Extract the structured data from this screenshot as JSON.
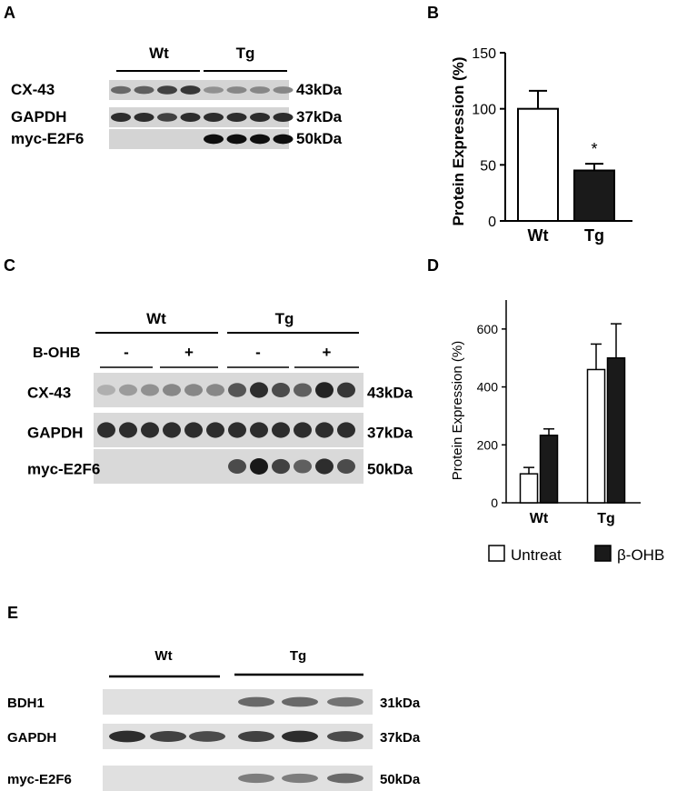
{
  "panel_labels": {
    "a": "A",
    "b": "B",
    "c": "C",
    "d": "D",
    "e": "E"
  },
  "panel_a": {
    "groups": [
      "Wt",
      "Tg"
    ],
    "lanes_per_group": 4,
    "rows": [
      {
        "label": "CX-43",
        "kda": "43kDa",
        "wt": [
          0.55,
          0.6,
          0.75,
          0.8
        ],
        "tg": [
          0.35,
          0.4,
          0.4,
          0.4
        ]
      },
      {
        "label": "GAPDH",
        "kda": "37kDa",
        "wt": [
          0.85,
          0.85,
          0.75,
          0.85
        ],
        "tg": [
          0.85,
          0.85,
          0.85,
          0.85
        ]
      },
      {
        "label": "myc-E2F6",
        "kda": "50kDa",
        "wt": [
          0,
          0,
          0,
          0
        ],
        "tg": [
          1,
          1,
          1,
          1
        ]
      }
    ]
  },
  "panel_c": {
    "groups": [
      "Wt",
      "Tg"
    ],
    "treatment_label": "B-OHB",
    "treatment_signs": [
      "-",
      "+",
      "-",
      "+"
    ],
    "lanes_per_subgroup": 3,
    "rows": [
      {
        "label": "CX-43",
        "kda": "43kDa",
        "bands": [
          0.2,
          0.3,
          0.35,
          0.4,
          0.4,
          0.4,
          0.65,
          0.85,
          0.7,
          0.6,
          0.9,
          0.8
        ]
      },
      {
        "label": "GAPDH",
        "kda": "37kDa",
        "bands": [
          0.85,
          0.85,
          0.85,
          0.85,
          0.85,
          0.85,
          0.85,
          0.85,
          0.85,
          0.85,
          0.85,
          0.85
        ]
      },
      {
        "label": "myc-E2F6",
        "kda": "50kDa",
        "bands": [
          0,
          0,
          0,
          0,
          0,
          0,
          0.7,
          0.95,
          0.75,
          0.6,
          0.85,
          0.7
        ]
      }
    ]
  },
  "panel_e": {
    "groups": [
      "Wt",
      "Tg"
    ],
    "lanes_per_group": 3,
    "rows": [
      {
        "label": "BDH1",
        "kda": "31kDa",
        "wt": [
          0,
          0,
          0
        ],
        "tg": [
          0.55,
          0.55,
          0.5
        ]
      },
      {
        "label": "GAPDH",
        "kda": "37kDa",
        "wt": [
          0.85,
          0.75,
          0.7
        ],
        "tg": [
          0.75,
          0.85,
          0.7
        ]
      },
      {
        "label": "myc-E2F6",
        "kda": "50kDa",
        "wt": [
          0,
          0,
          0
        ],
        "tg": [
          0.45,
          0.45,
          0.55
        ]
      }
    ]
  },
  "chart_data": [
    {
      "panel": "B",
      "type": "bar",
      "categories": [
        "Wt",
        "Tg"
      ],
      "values": [
        100,
        45
      ],
      "errors": [
        16,
        6
      ],
      "fills": [
        "#ffffff",
        "#1a1a1a"
      ],
      "significance": [
        "",
        "*"
      ],
      "ylabel": "Protein Expression (%)",
      "ylim": [
        0,
        150
      ],
      "yticks": [
        0,
        50,
        100,
        150
      ]
    },
    {
      "panel": "D",
      "type": "bar",
      "categories": [
        "Wt",
        "Tg"
      ],
      "series": [
        {
          "name": "Untreat",
          "values": [
            100,
            460
          ],
          "errors": [
            22,
            88
          ],
          "fill": "#ffffff"
        },
        {
          "name": "β-OHB",
          "values": [
            233,
            500
          ],
          "errors": [
            22,
            118
          ],
          "fill": "#1a1a1a"
        }
      ],
      "ylabel": "Protein Expression (%)",
      "ylim": [
        0,
        700
      ],
      "yticks": [
        0,
        200,
        400,
        600
      ],
      "legend": "bottom"
    }
  ]
}
